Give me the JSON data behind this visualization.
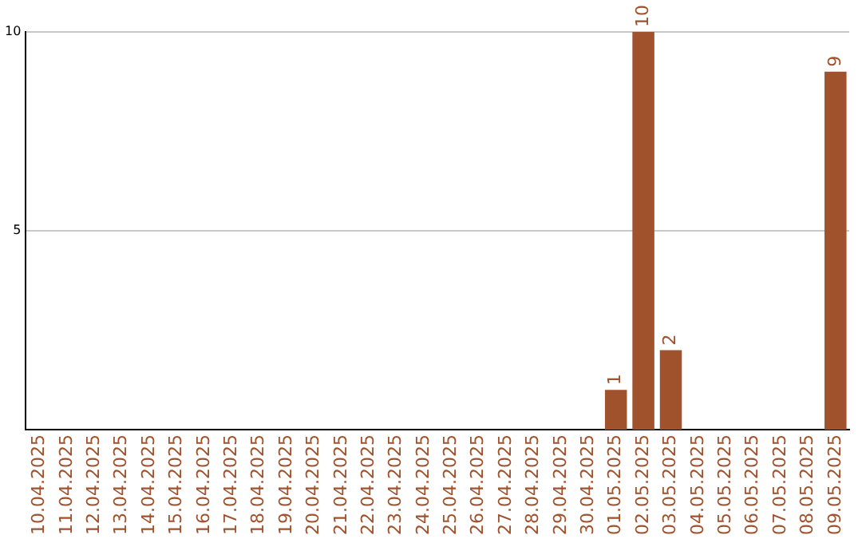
{
  "chart_data": {
    "type": "bar",
    "categories": [
      "10.04.2025",
      "11.04.2025",
      "12.04.2025",
      "13.04.2025",
      "14.04.2025",
      "15.04.2025",
      "16.04.2025",
      "17.04.2025",
      "18.04.2025",
      "19.04.2025",
      "20.04.2025",
      "21.04.2025",
      "22.04.2025",
      "23.04.2025",
      "24.04.2025",
      "25.04.2025",
      "26.04.2025",
      "27.04.2025",
      "28.04.2025",
      "29.04.2025",
      "30.04.2025",
      "01.05.2025",
      "02.05.2025",
      "03.05.2025",
      "04.05.2025",
      "05.05.2025",
      "06.05.2025",
      "07.05.2025",
      "08.05.2025",
      "09.05.2025"
    ],
    "values": [
      0,
      0,
      0,
      0,
      0,
      0,
      0,
      0,
      0,
      0,
      0,
      0,
      0,
      0,
      0,
      0,
      0,
      0,
      0,
      0,
      0,
      1,
      10,
      2,
      0,
      0,
      0,
      0,
      0,
      9
    ],
    "value_labels": [
      null,
      null,
      null,
      null,
      null,
      null,
      null,
      null,
      null,
      null,
      null,
      null,
      null,
      null,
      null,
      null,
      null,
      null,
      null,
      null,
      null,
      "1",
      "10",
      "2",
      null,
      null,
      null,
      null,
      null,
      "9"
    ],
    "color": "#a0522d",
    "ylim": [
      0,
      10
    ],
    "yticks": [
      5,
      10
    ],
    "grid": "y",
    "legend": false
  }
}
